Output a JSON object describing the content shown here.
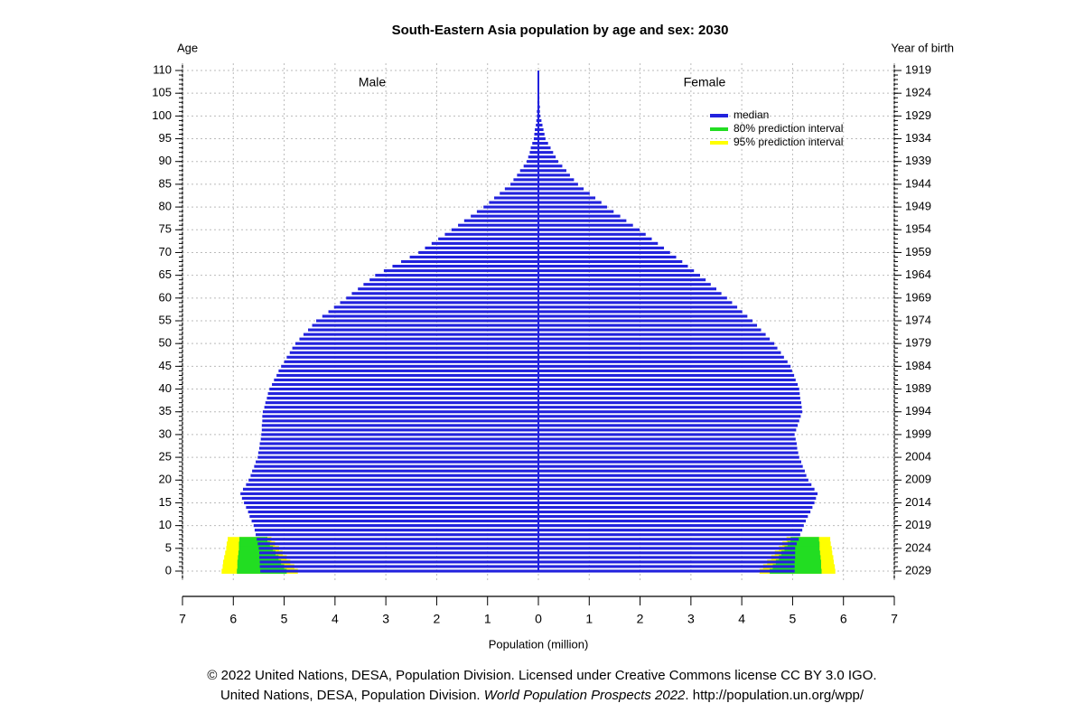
{
  "chart_data": {
    "type": "population-pyramid",
    "title": "South-Eastern Asia population by age and sex: 2030",
    "y_label": "Age",
    "y2_label": "Year of birth",
    "x_label": "Population (million)",
    "ylim": [
      0,
      110
    ],
    "yticks": [
      0,
      5,
      10,
      15,
      20,
      25,
      30,
      35,
      40,
      45,
      50,
      55,
      60,
      65,
      70,
      75,
      80,
      85,
      90,
      95,
      100,
      105,
      110
    ],
    "y2lim": [
      2029,
      1919
    ],
    "y2ticks": [
      2029,
      2024,
      2019,
      2014,
      2009,
      2004,
      1999,
      1994,
      1989,
      1984,
      1979,
      1974,
      1969,
      1964,
      1959,
      1954,
      1949,
      1944,
      1939,
      1934,
      1929,
      1924,
      1919
    ],
    "xlim": [
      0,
      7
    ],
    "xticks": [
      0,
      1,
      2,
      3,
      4,
      5,
      6,
      7
    ],
    "grid": true,
    "ages": [
      0,
      1,
      2,
      3,
      4,
      5,
      6,
      7,
      8,
      9,
      10,
      11,
      12,
      13,
      14,
      15,
      16,
      17,
      18,
      19,
      20,
      21,
      22,
      23,
      24,
      25,
      26,
      27,
      28,
      29,
      30,
      31,
      32,
      33,
      34,
      35,
      36,
      37,
      38,
      39,
      40,
      41,
      42,
      43,
      44,
      45,
      46,
      47,
      48,
      49,
      50,
      51,
      52,
      53,
      54,
      55,
      56,
      57,
      58,
      59,
      60,
      61,
      62,
      63,
      64,
      65,
      66,
      67,
      68,
      69,
      70,
      71,
      72,
      73,
      74,
      75,
      76,
      77,
      78,
      79,
      80,
      81,
      82,
      83,
      84,
      85,
      86,
      87,
      88,
      89,
      90,
      91,
      92,
      93,
      94,
      95,
      96,
      97,
      98,
      99,
      100,
      101,
      102,
      103,
      104,
      105,
      106,
      107,
      108,
      109,
      110
    ],
    "series": [
      {
        "name": "Male",
        "side": "left",
        "color": "#2222dd",
        "values": [
          5.47,
          5.48,
          5.48,
          5.49,
          5.49,
          5.5,
          5.52,
          5.54,
          5.56,
          5.58,
          5.6,
          5.64,
          5.68,
          5.71,
          5.75,
          5.79,
          5.83,
          5.86,
          5.81,
          5.75,
          5.7,
          5.66,
          5.63,
          5.59,
          5.56,
          5.52,
          5.51,
          5.49,
          5.48,
          5.46,
          5.45,
          5.44,
          5.44,
          5.43,
          5.43,
          5.42,
          5.39,
          5.37,
          5.34,
          5.32,
          5.29,
          5.24,
          5.2,
          5.15,
          5.11,
          5.06,
          5.0,
          4.95,
          4.89,
          4.84,
          4.78,
          4.7,
          4.62,
          4.53,
          4.45,
          4.37,
          4.25,
          4.13,
          4.02,
          3.9,
          3.78,
          3.67,
          3.55,
          3.44,
          3.32,
          3.21,
          3.04,
          2.87,
          2.7,
          2.53,
          2.36,
          2.23,
          2.1,
          1.97,
          1.84,
          1.71,
          1.58,
          1.46,
          1.33,
          1.21,
          1.08,
          0.97,
          0.87,
          0.76,
          0.66,
          0.55,
          0.49,
          0.42,
          0.36,
          0.29,
          0.23,
          0.2,
          0.17,
          0.15,
          0.12,
          0.09,
          0.08,
          0.07,
          0.05,
          0.04,
          0.03,
          0.03,
          0.02,
          0.02,
          0.01,
          0.01,
          0.01,
          0.01,
          0.0,
          0.0,
          0.0
        ]
      },
      {
        "name": "Female",
        "side": "right",
        "color": "#2222dd",
        "values": [
          5.04,
          5.04,
          5.04,
          5.05,
          5.05,
          5.05,
          5.08,
          5.12,
          5.15,
          5.19,
          5.22,
          5.26,
          5.3,
          5.35,
          5.39,
          5.43,
          5.46,
          5.49,
          5.43,
          5.37,
          5.31,
          5.27,
          5.24,
          5.2,
          5.17,
          5.13,
          5.11,
          5.09,
          5.08,
          5.06,
          5.04,
          5.07,
          5.1,
          5.13,
          5.16,
          5.19,
          5.18,
          5.17,
          5.15,
          5.14,
          5.13,
          5.1,
          5.06,
          5.03,
          4.99,
          4.96,
          4.9,
          4.83,
          4.77,
          4.7,
          4.64,
          4.55,
          4.47,
          4.38,
          4.3,
          4.21,
          4.11,
          4.01,
          3.91,
          3.81,
          3.71,
          3.6,
          3.5,
          3.39,
          3.29,
          3.18,
          3.06,
          2.94,
          2.83,
          2.71,
          2.59,
          2.47,
          2.35,
          2.23,
          2.11,
          1.99,
          1.86,
          1.73,
          1.61,
          1.48,
          1.35,
          1.24,
          1.12,
          1.01,
          0.89,
          0.78,
          0.7,
          0.62,
          0.55,
          0.47,
          0.39,
          0.34,
          0.29,
          0.24,
          0.19,
          0.14,
          0.12,
          0.1,
          0.08,
          0.06,
          0.04,
          0.03,
          0.03,
          0.02,
          0.02,
          0.01,
          0.01,
          0.01,
          0.0,
          0.0,
          0.0
        ]
      }
    ],
    "legend": [
      {
        "name": "median",
        "color": "#2222dd"
      },
      {
        "name": "80% prediction interval",
        "color": "#22dd22"
      },
      {
        "name": "95% prediction interval",
        "color": "#ffff00"
      }
    ],
    "intervals": [
      {
        "level": "95%",
        "color": "#ffff00",
        "male": {
          "lower": [
            4.73,
            4.8,
            4.88,
            4.95,
            5.03,
            5.1,
            5.18,
            5.25
          ],
          "upper": [
            6.23,
            6.21,
            6.2,
            6.18,
            6.16,
            6.14,
            6.13,
            6.11
          ]
        },
        "female": {
          "lower": [
            4.35,
            4.42,
            4.5,
            4.58,
            4.65,
            4.73,
            4.8,
            4.88
          ],
          "upper": [
            5.84,
            5.83,
            5.81,
            5.8,
            5.78,
            5.77,
            5.75,
            5.74
          ]
        }
      },
      {
        "level": "80%",
        "color": "#22dd22",
        "male": {
          "lower": [
            4.95,
            5.0,
            5.06,
            5.11,
            5.17,
            5.22,
            5.28,
            5.33
          ],
          "upper": [
            5.93,
            5.92,
            5.92,
            5.91,
            5.9,
            5.89,
            5.89,
            5.88
          ]
        },
        "female": {
          "lower": [
            4.55,
            4.61,
            4.67,
            4.73,
            4.78,
            4.84,
            4.9,
            4.96
          ],
          "upper": [
            5.57,
            5.56,
            5.56,
            5.55,
            5.54,
            5.53,
            5.53,
            5.52
          ]
        }
      }
    ],
    "footer": {
      "line1": "© 2022 United Nations, DESA, Population Division. Licensed under Creative Commons license CC BY 3.0 IGO.",
      "line2_start": "United Nations, DESA, Population Division. ",
      "line2_italic": "World Population Prospects 2022",
      "line2_end": ". http://population.un.org/wpp/"
    }
  }
}
